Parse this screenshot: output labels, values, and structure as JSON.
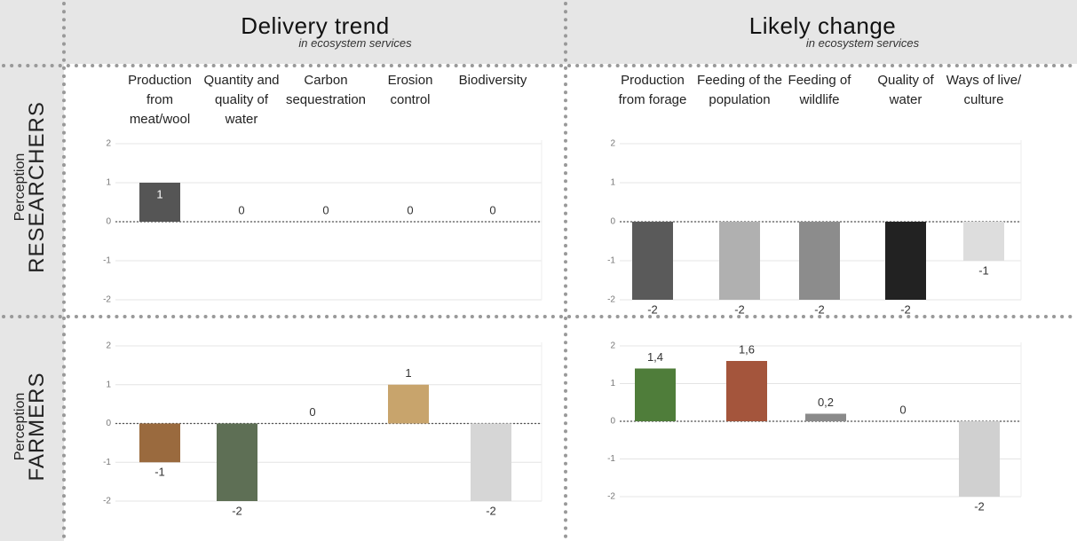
{
  "columns": [
    {
      "title": "Delivery trend",
      "subtitle": "in ecosystem services"
    },
    {
      "title": "Likely change",
      "subtitle": "in ecosystem services"
    }
  ],
  "rows": [
    {
      "label": "Perception",
      "title": "RESEARCHERS"
    },
    {
      "label": "Perception",
      "title": "FARMERS"
    }
  ],
  "chart_data": [
    {
      "type": "bar",
      "categories": [
        "Production from meat/wool",
        "Quantity and quality of water",
        "Carbon sequestration",
        "Erosion control",
        "Biodiversity"
      ],
      "values": [
        1,
        0,
        0,
        0,
        0
      ],
      "colors": [
        "#555555",
        "#555555",
        "#555555",
        "#555555",
        "#555555"
      ],
      "ylim": [
        -2,
        2
      ],
      "yticks": [
        -2,
        -1,
        0,
        1,
        2
      ],
      "grid": true
    },
    {
      "type": "bar",
      "categories": [
        "Production from forage",
        "Feeding of the population",
        "Feeding of wildlife",
        "Quality of water",
        "Ways of live/ culture"
      ],
      "values": [
        -2,
        -2,
        -2,
        -2,
        -1
      ],
      "colors": [
        "#5a5a5a",
        "#b0b0b0",
        "#8c8c8c",
        "#222222",
        "#dddddd"
      ],
      "ylim": [
        -2,
        2
      ],
      "yticks": [
        -2,
        -1,
        0,
        1,
        2
      ],
      "grid": true
    },
    {
      "type": "bar",
      "values": [
        -1,
        -2,
        0,
        1,
        -2
      ],
      "colors": [
        "#9a6a3e",
        "#5e6f55",
        "#8b6a4a",
        "#c8a46c",
        "#d6d6d6"
      ],
      "ylim": [
        -2,
        2
      ],
      "yticks": [
        -2,
        -1,
        0,
        1,
        2
      ],
      "grid": true
    },
    {
      "type": "bar",
      "values": [
        1.4,
        1.6,
        0.2,
        0,
        -2
      ],
      "value_labels": [
        "1,4",
        "1,6",
        "0,2",
        "0",
        "-2"
      ],
      "colors": [
        "#4f7d3a",
        "#a4553c",
        "#8a8a8a",
        "#5b7a4a",
        "#d0d0d0"
      ],
      "ylim": [
        -2,
        2
      ],
      "yticks": [
        -2,
        -1,
        0,
        1,
        2
      ],
      "grid": true
    }
  ]
}
